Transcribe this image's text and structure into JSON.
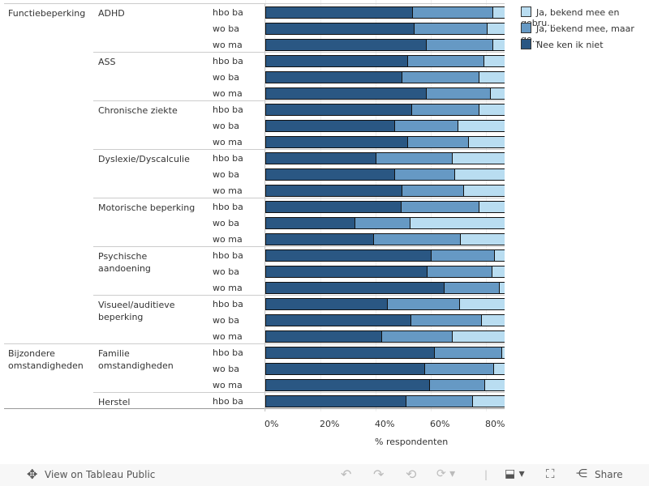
{
  "chart_data": {
    "type": "bar",
    "orientation": "horizontal",
    "stacked": true,
    "xlabel": "% respondenten",
    "xlim": [
      0,
      100
    ],
    "xticks": [
      "0%",
      "20%",
      "40%",
      "60%",
      "80%"
    ],
    "grid": true,
    "legend_placement": "right",
    "series": [
      {
        "name": "Nee ken ik niet",
        "color": "#2a5783"
      },
      {
        "name": "Ja, bekend mee, maar ge...",
        "color": "#6699c4"
      },
      {
        "name": "Ja, bekend mee en gebru...",
        "color": "#b9ddf1"
      }
    ],
    "groups": [
      {
        "label": "Functiebeperking",
        "subgroups": [
          {
            "label": "ADHD",
            "rows": [
              [
                "hbo ba",
                53.5,
                29.1
              ],
              [
                "wo ba",
                54.1,
                26.5
              ],
              [
                "wo ma",
                58.5,
                24.1
              ]
            ]
          },
          {
            "label": "ASS",
            "rows": [
              [
                "hbo ba",
                51.8,
                27.6
              ],
              [
                "wo ba",
                49.7,
                27.9
              ],
              [
                "wo ma",
                58.5,
                23.3
              ]
            ]
          },
          {
            "label": "Chronische ziekte",
            "rows": [
              [
                "hbo ba",
                53.2,
                24.4
              ],
              [
                "wo ba",
                47.1,
                22.9
              ],
              [
                "wo ma",
                51.8,
                22.0
              ]
            ]
          },
          {
            "label": "Dyslexie/Dyscalculie",
            "rows": [
              [
                "hbo ba",
                40.3,
                27.6
              ],
              [
                "wo ba",
                47.1,
                21.7
              ],
              [
                "wo ma",
                49.7,
                22.4
              ]
            ]
          },
          {
            "label": "Motorische beperking",
            "rows": [
              [
                "hbo ba",
                49.4,
                28.2
              ],
              [
                "wo ba",
                32.6,
                20.0
              ],
              [
                "wo ma",
                39.4,
                31.5
              ]
            ]
          },
          {
            "label": "Psychische aandoening",
            "rows": [
              [
                "hbo ba",
                60.3,
                22.9
              ],
              [
                "wo ba",
                58.8,
                23.6
              ],
              [
                "wo ma",
                65.0,
                20.0
              ]
            ]
          },
          {
            "label": "Visueel/auditieve beperking",
            "rows": [
              [
                "hbo ba",
                44.4,
                26.2
              ],
              [
                "wo ba",
                52.9,
                25.6
              ],
              [
                "wo ma",
                42.4,
                25.5
              ]
            ]
          }
        ]
      },
      {
        "label": "Bijzondere omstandigheden",
        "subgroups": [
          {
            "label": "Familie omstandigheden",
            "rows": [
              [
                "hbo ba",
                61.5,
                24.4
              ],
              [
                "wo ba",
                57.9,
                25.0
              ],
              [
                "wo ma",
                59.7,
                20.0
              ]
            ]
          },
          {
            "label": "Herstel",
            "rows": [
              [
                "hbo ba",
                51.2,
                24.1
              ]
            ]
          }
        ]
      }
    ]
  },
  "toolbar": {
    "view_label": "View on Tableau Public",
    "share_label": "Share"
  }
}
